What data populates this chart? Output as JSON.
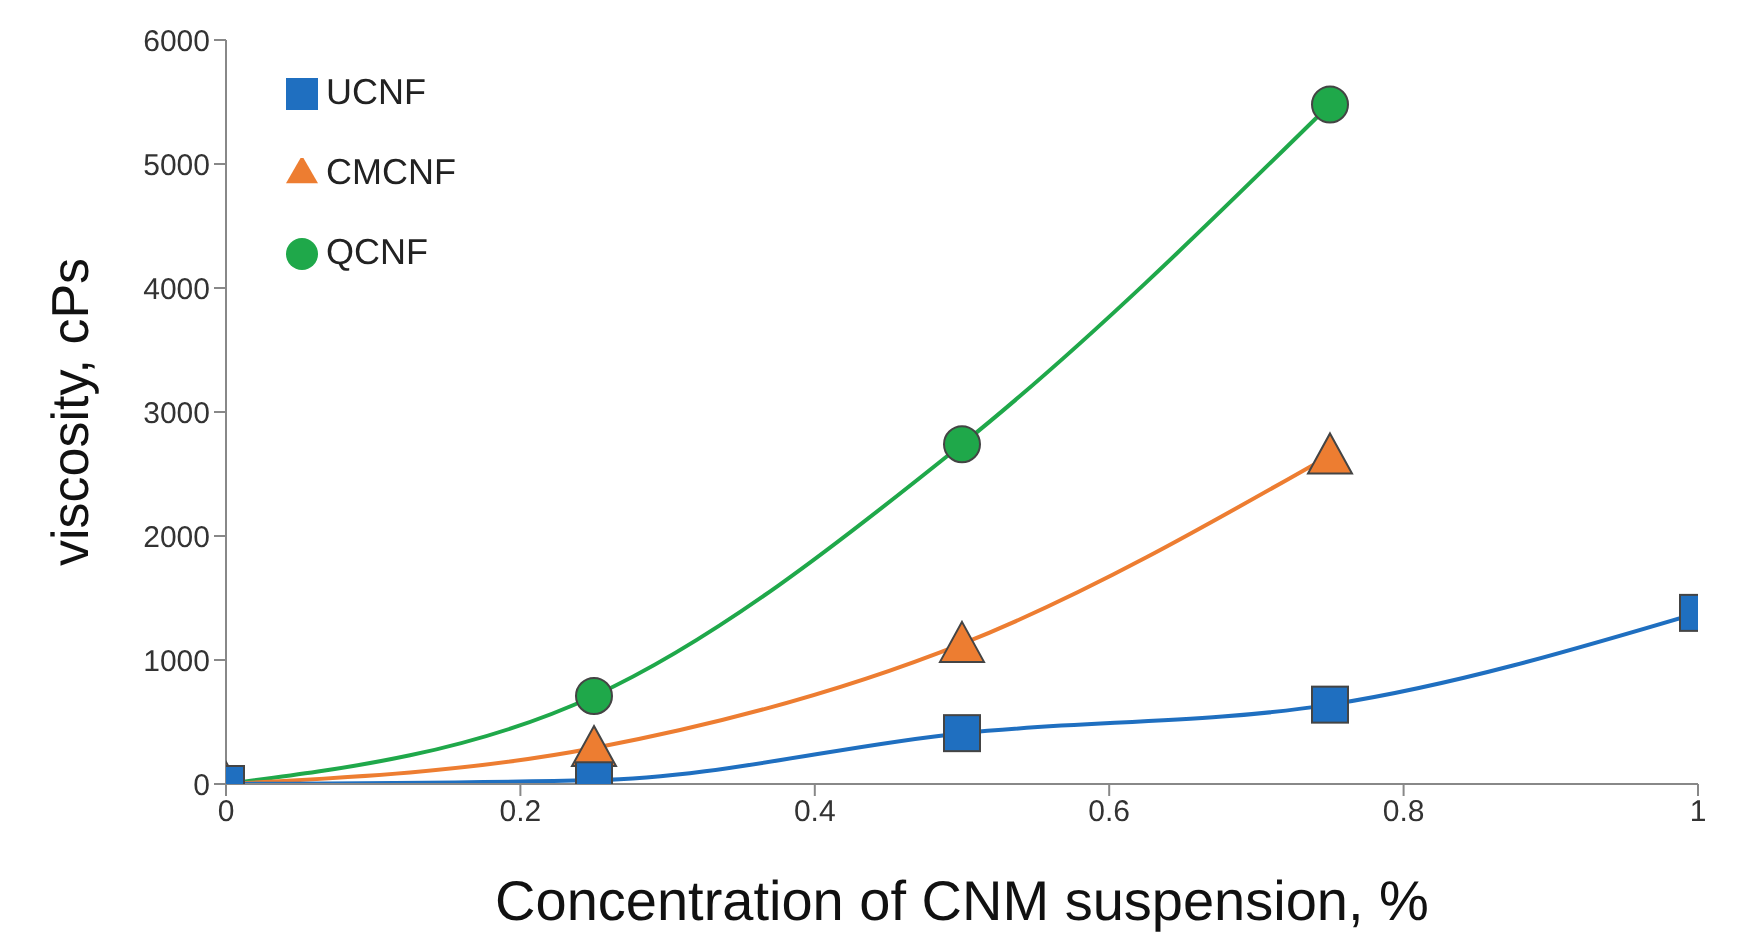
{
  "chart_data": {
    "type": "line",
    "xlabel": "Concentration of CNM suspension, %",
    "ylabel": "viscosity, cPs",
    "xlim": [
      0,
      1
    ],
    "xticks": [
      0,
      0.2,
      0.4,
      0.6,
      0.8,
      1
    ],
    "ylim": [
      0,
      6000
    ],
    "yticks": [
      0,
      1000,
      2000,
      3000,
      4000,
      5000,
      6000
    ],
    "grid": false,
    "legend": "top left",
    "line_style": "solid",
    "series": [
      {
        "name": "UCNF",
        "color": "#1f6fc0",
        "marker": "square",
        "x": [
          0,
          0.25,
          0.5,
          0.75,
          1
        ],
        "values": [
          0,
          30,
          410,
          640,
          1380
        ]
      },
      {
        "name": "CMCNF",
        "color": "#ed7d31",
        "marker": "triangle",
        "x": [
          0,
          0.25,
          0.5,
          0.75
        ],
        "values": [
          0,
          290,
          1130,
          2650
        ]
      },
      {
        "name": "QCNF",
        "color": "#1fa84a",
        "marker": "circle",
        "x": [
          0,
          0.25,
          0.5,
          0.75
        ],
        "values": [
          0,
          710,
          2740,
          5480
        ]
      }
    ]
  }
}
